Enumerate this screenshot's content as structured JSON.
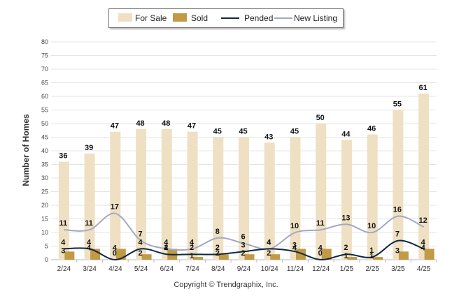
{
  "chart_data": {
    "type": "bar",
    "categories": [
      "2/24",
      "3/24",
      "4/24",
      "5/24",
      "6/24",
      "7/24",
      "8/24",
      "9/24",
      "10/24",
      "11/24",
      "12/24",
      "1/25",
      "2/25",
      "3/25",
      "4/25"
    ],
    "series": [
      {
        "name": "For Sale",
        "kind": "bar",
        "color": "#efe0c3",
        "values": [
          36,
          39,
          47,
          48,
          48,
          47,
          45,
          45,
          43,
          45,
          50,
          44,
          46,
          55,
          61
        ]
      },
      {
        "name": "Sold",
        "kind": "bar",
        "color": "#c19a45",
        "values": [
          3,
          4,
          4,
          2,
          4,
          1,
          2,
          2,
          2,
          4,
          4,
          1,
          1,
          3,
          4
        ]
      },
      {
        "name": "Pended",
        "kind": "line",
        "color": "#0f2742",
        "values": [
          4,
          4,
          0,
          4,
          2,
          2,
          2,
          3,
          4,
          3,
          0,
          2,
          1,
          7,
          4
        ]
      },
      {
        "name": "New Listing",
        "kind": "line",
        "color": "#a2a9c2",
        "values": [
          11,
          11,
          17,
          7,
          4,
          4,
          8,
          6,
          4,
          10,
          11,
          13,
          10,
          16,
          12
        ]
      }
    ],
    "ylabel": "Number of Homes",
    "ylim": [
      0,
      80
    ],
    "yticks": [
      0,
      5,
      10,
      15,
      20,
      25,
      30,
      35,
      40,
      45,
      50,
      55,
      60,
      65,
      70,
      75,
      80
    ],
    "grid": true,
    "legend": "top-center"
  },
  "legend": {
    "items": [
      {
        "label": "For Sale",
        "color": "#efe0c3"
      },
      {
        "label": "Sold",
        "color": "#c19a45"
      },
      {
        "label": "Pended",
        "color": "#0f2742"
      },
      {
        "label": "New Listing",
        "color": "#a2a9c2"
      }
    ]
  },
  "footer": {
    "copyright": "Copyright © Trendgraphix, Inc."
  }
}
